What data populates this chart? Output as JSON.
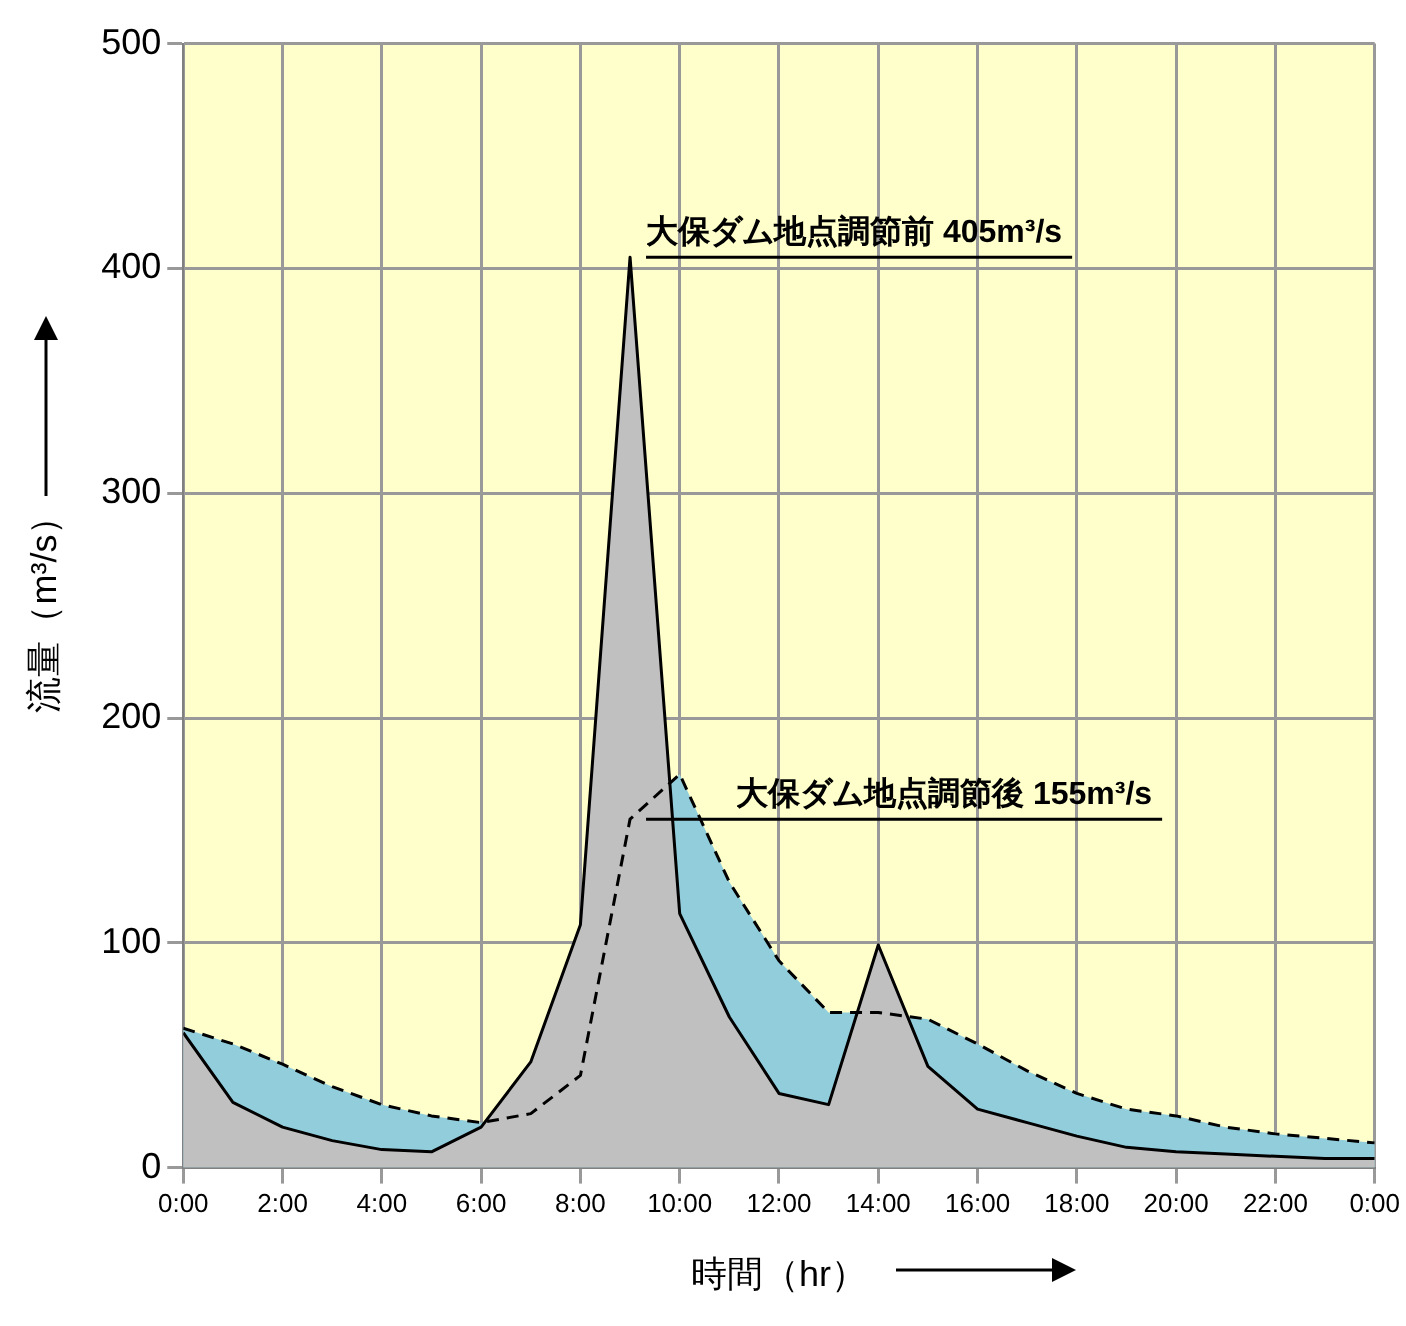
{
  "chart_data": {
    "type": "area",
    "xlabel": "時間（hr）",
    "ylabel": "流量（m³/s）",
    "x": [
      0,
      1,
      2,
      3,
      4,
      5,
      6,
      7,
      8,
      9,
      10,
      11,
      12,
      13,
      14,
      15,
      16,
      17,
      18,
      19,
      20,
      21,
      22,
      23,
      24
    ],
    "series": [
      {
        "color": "#c0c0c0",
        "line_style": "solid",
        "values": [
          60,
          29,
          18,
          12,
          8,
          7,
          18,
          47,
          108,
          405,
          113,
          67,
          33,
          28,
          99,
          45,
          26,
          20,
          14,
          9,
          7,
          6,
          5,
          4,
          4
        ]
      },
      {
        "color": "#92cddc",
        "line_style": "dashed",
        "values": [
          62,
          55,
          46,
          36,
          28,
          23,
          20,
          24,
          41,
          155,
          175,
          127,
          92,
          69,
          69,
          66,
          55,
          43,
          33,
          26,
          23,
          18,
          15,
          13,
          11
        ]
      }
    ],
    "xlim": [
      0,
      24
    ],
    "xticks": [
      {
        "value": 0,
        "label": "0:00"
      },
      {
        "value": 2,
        "label": "2:00"
      },
      {
        "value": 4,
        "label": "4:00"
      },
      {
        "value": 6,
        "label": "6:00"
      },
      {
        "value": 8,
        "label": "8:00"
      },
      {
        "value": 10,
        "label": "10:00"
      },
      {
        "value": 12,
        "label": "12:00"
      },
      {
        "value": 14,
        "label": "14:00"
      },
      {
        "value": 16,
        "label": "16:00"
      },
      {
        "value": 18,
        "label": "18:00"
      },
      {
        "value": 20,
        "label": "20:00"
      },
      {
        "value": 22,
        "label": "22:00"
      },
      {
        "value": 24,
        "label": "0:00"
      }
    ],
    "ylim": [
      0,
      500
    ],
    "yticks": [
      0,
      100,
      200,
      300,
      400,
      500
    ],
    "grid": true,
    "legend": false,
    "annotations": [
      {
        "text": "大保ダム地点調節前 405m³/s",
        "x": 9,
        "y": 405
      },
      {
        "text": "大保ダム地点調節後 155m³/s",
        "x": 9,
        "y": 155
      }
    ]
  }
}
